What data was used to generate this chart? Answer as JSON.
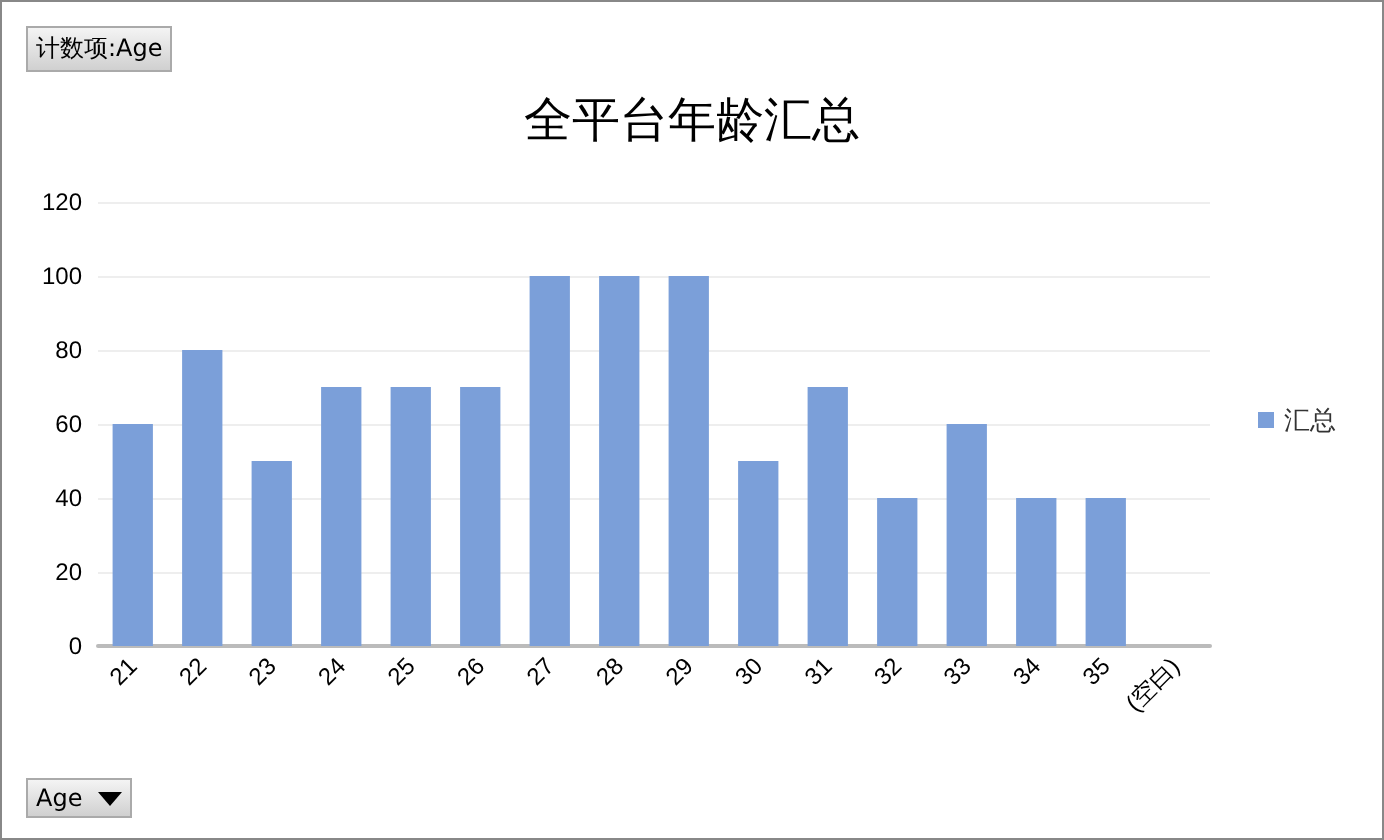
{
  "chart_data": {
    "type": "bar",
    "title": "全平台年龄汇总",
    "categories": [
      "21",
      "22",
      "23",
      "24",
      "25",
      "26",
      "27",
      "28",
      "29",
      "30",
      "31",
      "32",
      "33",
      "34",
      "35",
      "(空白)"
    ],
    "series": [
      {
        "name": "汇总",
        "color": "#7b9fd9",
        "values": [
          60,
          80,
          50,
          70,
          70,
          70,
          100,
          100,
          100,
          50,
          70,
          40,
          60,
          40,
          40,
          null
        ]
      }
    ],
    "ylim": [
      0,
      120
    ],
    "yticks": [
      0,
      20,
      40,
      60,
      80,
      100,
      120
    ],
    "grid": "y",
    "legend": "right",
    "annotations": [
      "计数项:Age",
      "Age"
    ]
  }
}
